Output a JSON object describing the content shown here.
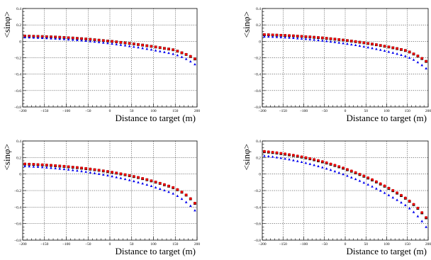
{
  "chart_data": [
    {
      "type": "scatter",
      "title": "",
      "xlabel": "Distance to target (m)",
      "ylabel": "<sinφ>",
      "xlim": [
        -200,
        200
      ],
      "ylim": [
        -0.8,
        0.4
      ],
      "x_ticks": [
        "−200",
        "−150",
        "−100",
        "−50",
        "0",
        "50",
        "100",
        "150",
        "200"
      ],
      "y_ticks": [
        "0.4",
        "0.2",
        "0",
        "−0.2",
        "−0.4",
        "−0.6",
        "−0.8"
      ],
      "grid": true,
      "legend": "none",
      "x": [
        -195,
        -185,
        -175,
        -165,
        -155,
        -145,
        -135,
        -125,
        -115,
        -105,
        -95,
        -85,
        -75,
        -65,
        -55,
        -45,
        -35,
        -25,
        -15,
        -5,
        5,
        15,
        25,
        35,
        45,
        55,
        65,
        75,
        85,
        95,
        105,
        115,
        125,
        135,
        145,
        155,
        165,
        175,
        185,
        195
      ],
      "series": [
        {
          "color": "#000000",
          "marker": "square",
          "values": [
            0.064,
            0.063,
            0.061,
            0.06,
            0.058,
            0.056,
            0.054,
            0.052,
            0.049,
            0.046,
            0.043,
            0.04,
            0.036,
            0.032,
            0.028,
            0.024,
            0.019,
            0.014,
            0.009,
            0.004,
            -0.001,
            -0.007,
            -0.013,
            -0.019,
            -0.025,
            -0.032,
            -0.039,
            -0.046,
            -0.054,
            -0.061,
            -0.069,
            -0.077,
            -0.086,
            -0.094,
            -0.103,
            -0.12,
            -0.14,
            -0.16,
            -0.185,
            -0.215
          ]
        },
        {
          "color": "#ee0000",
          "marker": "circle",
          "values": [
            0.066,
            0.064,
            0.063,
            0.061,
            0.059,
            0.057,
            0.055,
            0.053,
            0.05,
            0.047,
            0.044,
            0.041,
            0.037,
            0.033,
            0.029,
            0.025,
            0.02,
            0.015,
            0.01,
            0.005,
            0.0,
            -0.006,
            -0.012,
            -0.018,
            -0.024,
            -0.031,
            -0.038,
            -0.045,
            -0.053,
            -0.06,
            -0.068,
            -0.076,
            -0.085,
            -0.093,
            -0.102,
            -0.118,
            -0.138,
            -0.158,
            -0.182,
            -0.212
          ]
        },
        {
          "color": "#0000ee",
          "marker": "triangle",
          "values": [
            0.048,
            0.047,
            0.045,
            0.043,
            0.041,
            0.039,
            0.036,
            0.033,
            0.03,
            0.027,
            0.023,
            0.019,
            0.015,
            0.011,
            0.006,
            0.001,
            -0.004,
            -0.01,
            -0.016,
            -0.022,
            -0.029,
            -0.036,
            -0.043,
            -0.05,
            -0.058,
            -0.066,
            -0.074,
            -0.083,
            -0.092,
            -0.101,
            -0.111,
            -0.121,
            -0.131,
            -0.142,
            -0.153,
            -0.17,
            -0.19,
            -0.215,
            -0.245,
            -0.28
          ]
        }
      ]
    },
    {
      "type": "scatter",
      "title": "",
      "xlabel": "Distance to target (m)",
      "ylabel": "<sinφ>",
      "xlim": [
        -200,
        200
      ],
      "ylim": [
        -0.8,
        0.4
      ],
      "x_ticks": [
        "−200",
        "−150",
        "−100",
        "−50",
        "0",
        "50",
        "100",
        "150",
        "200"
      ],
      "y_ticks": [
        "0.4",
        "0.2",
        "0",
        "−0.2",
        "−0.4",
        "−0.6",
        "−0.8"
      ],
      "grid": true,
      "legend": "none",
      "x": [
        -195,
        -185,
        -175,
        -165,
        -155,
        -145,
        -135,
        -125,
        -115,
        -105,
        -95,
        -85,
        -75,
        -65,
        -55,
        -45,
        -35,
        -25,
        -15,
        -5,
        5,
        15,
        25,
        35,
        45,
        55,
        65,
        75,
        85,
        95,
        105,
        115,
        125,
        135,
        145,
        155,
        165,
        175,
        185,
        195
      ],
      "series": [
        {
          "color": "#000000",
          "marker": "square",
          "values": [
            0.08,
            0.079,
            0.077,
            0.075,
            0.073,
            0.071,
            0.068,
            0.066,
            0.063,
            0.06,
            0.056,
            0.053,
            0.049,
            0.045,
            0.041,
            0.036,
            0.031,
            0.026,
            0.021,
            0.015,
            0.009,
            0.003,
            -0.004,
            -0.011,
            -0.018,
            -0.026,
            -0.034,
            -0.042,
            -0.051,
            -0.06,
            -0.069,
            -0.079,
            -0.089,
            -0.1,
            -0.112,
            -0.13,
            -0.155,
            -0.18,
            -0.21,
            -0.245
          ]
        },
        {
          "color": "#ee0000",
          "marker": "circle",
          "values": [
            0.083,
            0.081,
            0.079,
            0.077,
            0.075,
            0.073,
            0.071,
            0.068,
            0.065,
            0.062,
            0.058,
            0.055,
            0.051,
            0.047,
            0.043,
            0.038,
            0.033,
            0.028,
            0.023,
            0.017,
            0.011,
            0.005,
            -0.002,
            -0.009,
            -0.016,
            -0.024,
            -0.032,
            -0.04,
            -0.049,
            -0.058,
            -0.067,
            -0.077,
            -0.087,
            -0.098,
            -0.11,
            -0.128,
            -0.152,
            -0.177,
            -0.207,
            -0.242
          ]
        },
        {
          "color": "#0000ee",
          "marker": "triangle",
          "values": [
            0.058,
            0.057,
            0.055,
            0.053,
            0.05,
            0.047,
            0.044,
            0.041,
            0.037,
            0.033,
            0.029,
            0.024,
            0.019,
            0.014,
            0.009,
            0.003,
            -0.003,
            -0.009,
            -0.016,
            -0.023,
            -0.03,
            -0.038,
            -0.046,
            -0.055,
            -0.064,
            -0.073,
            -0.083,
            -0.093,
            -0.104,
            -0.115,
            -0.127,
            -0.139,
            -0.152,
            -0.166,
            -0.18,
            -0.2,
            -0.225,
            -0.255,
            -0.29,
            -0.33
          ]
        }
      ]
    },
    {
      "type": "scatter",
      "title": "",
      "xlabel": "Distance to target (m)",
      "ylabel": "<sinφ>",
      "xlim": [
        -200,
        200
      ],
      "ylim": [
        -0.8,
        0.4
      ],
      "x_ticks": [
        "−200",
        "−150",
        "−100",
        "−50",
        "0",
        "50",
        "100",
        "150",
        "200"
      ],
      "y_ticks": [
        "0.4",
        "0.2",
        "0",
        "−0.2",
        "−0.4",
        "−0.6",
        "−0.8"
      ],
      "grid": true,
      "legend": "none",
      "x": [
        -195,
        -185,
        -175,
        -165,
        -155,
        -145,
        -135,
        -125,
        -115,
        -105,
        -95,
        -85,
        -75,
        -65,
        -55,
        -45,
        -35,
        -25,
        -15,
        -5,
        5,
        15,
        25,
        35,
        45,
        55,
        65,
        75,
        85,
        95,
        105,
        115,
        125,
        135,
        145,
        155,
        165,
        175,
        185,
        195
      ],
      "series": [
        {
          "color": "#000000",
          "marker": "square",
          "values": [
            0.12,
            0.118,
            0.116,
            0.113,
            0.11,
            0.107,
            0.104,
            0.1,
            0.096,
            0.092,
            0.087,
            0.082,
            0.077,
            0.071,
            0.065,
            0.059,
            0.052,
            0.045,
            0.037,
            0.029,
            0.02,
            0.011,
            0.001,
            -0.009,
            -0.02,
            -0.031,
            -0.043,
            -0.056,
            -0.069,
            -0.083,
            -0.098,
            -0.113,
            -0.13,
            -0.147,
            -0.165,
            -0.19,
            -0.22,
            -0.255,
            -0.3,
            -0.355
          ]
        },
        {
          "color": "#ee0000",
          "marker": "circle",
          "values": [
            0.123,
            0.121,
            0.119,
            0.116,
            0.113,
            0.11,
            0.107,
            0.103,
            0.099,
            0.095,
            0.09,
            0.085,
            0.08,
            0.074,
            0.068,
            0.062,
            0.055,
            0.048,
            0.04,
            0.032,
            0.023,
            0.014,
            0.004,
            -0.006,
            -0.017,
            -0.028,
            -0.04,
            -0.053,
            -0.066,
            -0.08,
            -0.095,
            -0.11,
            -0.127,
            -0.144,
            -0.162,
            -0.187,
            -0.217,
            -0.252,
            -0.297,
            -0.352
          ]
        },
        {
          "color": "#0000ee",
          "marker": "triangle",
          "values": [
            0.095,
            0.093,
            0.09,
            0.087,
            0.083,
            0.079,
            0.075,
            0.07,
            0.065,
            0.06,
            0.054,
            0.048,
            0.041,
            0.034,
            0.027,
            0.019,
            0.011,
            0.002,
            -0.007,
            -0.017,
            -0.027,
            -0.038,
            -0.049,
            -0.061,
            -0.073,
            -0.086,
            -0.1,
            -0.114,
            -0.129,
            -0.145,
            -0.162,
            -0.179,
            -0.197,
            -0.216,
            -0.236,
            -0.265,
            -0.3,
            -0.34,
            -0.385,
            -0.44
          ]
        }
      ]
    },
    {
      "type": "scatter",
      "title": "",
      "xlabel": "Distance to target (m)",
      "ylabel": "<sinφ>",
      "xlim": [
        -200,
        200
      ],
      "ylim": [
        -0.8,
        0.4
      ],
      "x_ticks": [
        "−200",
        "−150",
        "−100",
        "−50",
        "0",
        "50",
        "100",
        "150",
        "200"
      ],
      "y_ticks": [
        "0.4",
        "0.2",
        "0",
        "−0.2",
        "−0.4",
        "−0.6",
        "−0.8"
      ],
      "grid": true,
      "legend": "none",
      "x": [
        -195,
        -185,
        -175,
        -165,
        -155,
        -145,
        -135,
        -125,
        -115,
        -105,
        -95,
        -85,
        -75,
        -65,
        -55,
        -45,
        -35,
        -25,
        -15,
        -5,
        5,
        15,
        25,
        35,
        45,
        55,
        65,
        75,
        85,
        95,
        105,
        115,
        125,
        135,
        145,
        155,
        165,
        175,
        185,
        195
      ],
      "series": [
        {
          "color": "#000000",
          "marker": "square",
          "values": [
            0.27,
            0.265,
            0.26,
            0.254,
            0.247,
            0.24,
            0.232,
            0.224,
            0.215,
            0.205,
            0.195,
            0.184,
            0.172,
            0.16,
            0.147,
            0.133,
            0.118,
            0.103,
            0.087,
            0.07,
            0.052,
            0.034,
            0.014,
            -0.006,
            -0.027,
            -0.049,
            -0.072,
            -0.096,
            -0.121,
            -0.147,
            -0.174,
            -0.202,
            -0.231,
            -0.261,
            -0.293,
            -0.33,
            -0.37,
            -0.415,
            -0.47,
            -0.53
          ]
        },
        {
          "color": "#ee0000",
          "marker": "circle",
          "values": [
            0.275,
            0.27,
            0.265,
            0.259,
            0.252,
            0.245,
            0.237,
            0.229,
            0.22,
            0.21,
            0.2,
            0.189,
            0.177,
            0.165,
            0.152,
            0.138,
            0.123,
            0.108,
            0.092,
            0.075,
            0.057,
            0.039,
            0.019,
            -0.001,
            -0.022,
            -0.044,
            -0.067,
            -0.091,
            -0.116,
            -0.142,
            -0.169,
            -0.197,
            -0.226,
            -0.256,
            -0.288,
            -0.325,
            -0.365,
            -0.41,
            -0.465,
            -0.525
          ]
        },
        {
          "color": "#0000ee",
          "marker": "triangle",
          "values": [
            0.22,
            0.215,
            0.209,
            0.202,
            0.194,
            0.186,
            0.177,
            0.167,
            0.157,
            0.146,
            0.134,
            0.122,
            0.109,
            0.095,
            0.081,
            0.066,
            0.05,
            0.033,
            0.016,
            -0.002,
            -0.021,
            -0.041,
            -0.061,
            -0.082,
            -0.104,
            -0.127,
            -0.151,
            -0.176,
            -0.201,
            -0.228,
            -0.255,
            -0.284,
            -0.313,
            -0.344,
            -0.376,
            -0.415,
            -0.46,
            -0.51,
            -0.57,
            -0.64
          ]
        }
      ]
    }
  ]
}
